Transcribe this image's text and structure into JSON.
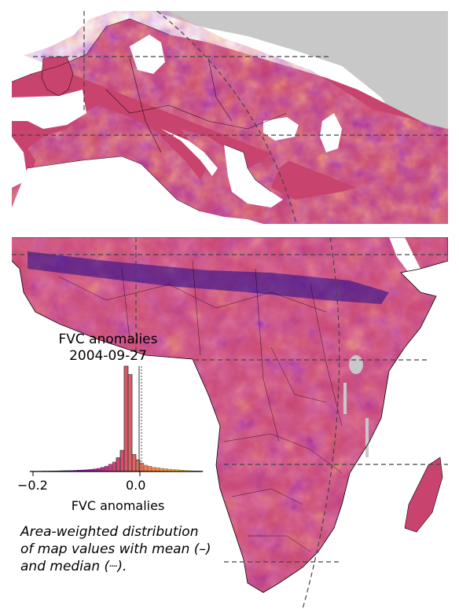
{
  "colors": {
    "base": "#c8436d",
    "land_gray": "#c8c8c8",
    "negative": "#2c0594",
    "neutral": "#b3317f",
    "positive": "#f3c72f",
    "grid": "#444444"
  },
  "colormap": "plasma",
  "histogram": {
    "title_line1": "FVC anomalies",
    "title_line2": "2004-09-27",
    "x_tick_labels": [
      "−0.2",
      "0.0"
    ],
    "x_label": "FVC anomalies",
    "bins_range": [
      -0.22,
      0.12
    ],
    "counts": [
      0.2,
      0.3,
      0.3,
      0.4,
      0.4,
      0.5,
      0.6,
      0.7,
      0.8,
      0.9,
      1.0,
      1.1,
      1.3,
      1.5,
      1.7,
      2.0,
      2.5,
      3,
      4,
      5,
      7,
      9,
      13,
      20,
      100,
      92,
      16,
      11,
      8,
      6,
      5,
      4,
      3.5,
      3,
      2.6,
      2.2,
      1.9,
      1.6,
      1.3,
      1.0,
      0.8,
      0.6,
      0.5,
      0.4
    ]
  },
  "caption": {
    "line1": "Area-weighted distribution",
    "line2": "of map values with mean (–)",
    "line3": "and median (┈)."
  }
}
